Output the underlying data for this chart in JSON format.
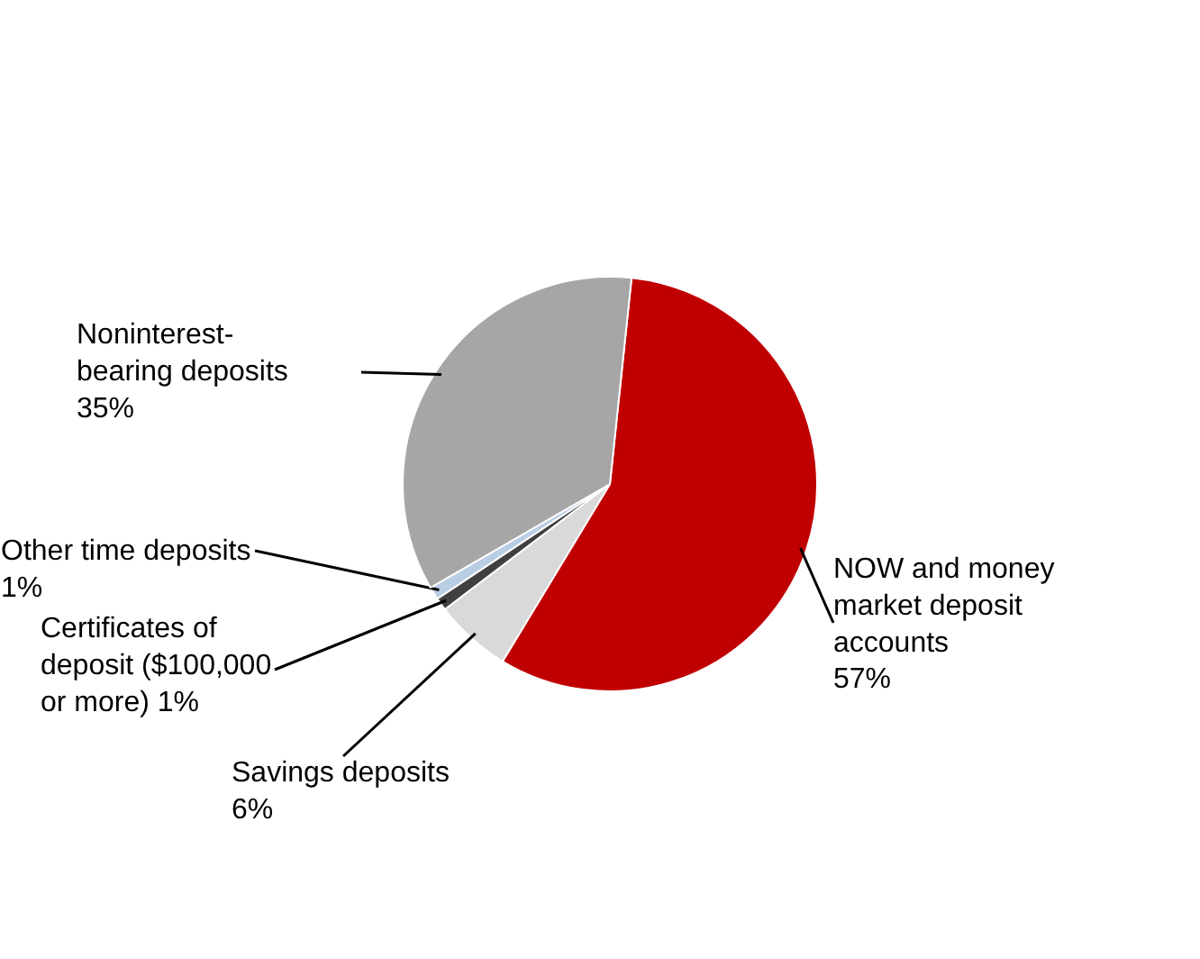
{
  "chart_data": {
    "type": "pie",
    "categories": [
      "NOW and money market deposit accounts",
      "Savings deposits",
      "Certificates of deposit ($100,000 or more)",
      "Other time deposits",
      "Noninterest-bearing deposits"
    ],
    "values": [
      57,
      6,
      1,
      1,
      35
    ],
    "value_labels": [
      "57%",
      "6%",
      "1%",
      "1%",
      "35%"
    ],
    "colors": [
      "#c00000",
      "#d9d9d9",
      "#404040",
      "#b9cde5",
      "#a6a6a6"
    ]
  }
}
